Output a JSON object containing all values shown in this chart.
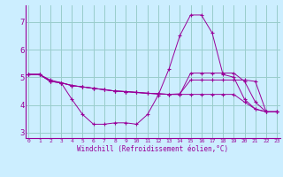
{
  "background_color": "#cceeff",
  "grid_color": "#99cccc",
  "line_color": "#990099",
  "x_hours": [
    0,
    1,
    2,
    3,
    4,
    5,
    6,
    7,
    8,
    9,
    10,
    11,
    12,
    13,
    14,
    15,
    16,
    17,
    18,
    19,
    20,
    21,
    22,
    23
  ],
  "series": [
    [
      5.1,
      5.1,
      4.9,
      4.8,
      4.2,
      3.65,
      3.3,
      3.3,
      3.35,
      3.35,
      3.3,
      3.65,
      4.35,
      5.3,
      6.5,
      7.25,
      7.25,
      6.6,
      5.1,
      5.0,
      4.2,
      3.85,
      3.75,
      3.75
    ],
    [
      5.1,
      5.1,
      4.85,
      4.8,
      4.7,
      4.65,
      4.6,
      4.55,
      4.5,
      4.48,
      4.45,
      4.42,
      4.4,
      4.38,
      4.38,
      5.15,
      5.15,
      5.15,
      5.15,
      5.15,
      4.85,
      4.1,
      3.75,
      3.75
    ],
    [
      5.1,
      5.1,
      4.85,
      4.8,
      4.7,
      4.65,
      4.6,
      4.55,
      4.5,
      4.48,
      4.45,
      4.42,
      4.4,
      4.38,
      4.4,
      4.9,
      4.9,
      4.9,
      4.9,
      4.9,
      4.9,
      4.85,
      3.75,
      3.75
    ],
    [
      5.1,
      5.1,
      4.85,
      4.8,
      4.7,
      4.65,
      4.6,
      4.55,
      4.5,
      4.48,
      4.45,
      4.42,
      4.4,
      4.38,
      4.38,
      4.38,
      4.38,
      4.38,
      4.38,
      4.38,
      4.1,
      3.85,
      3.75,
      3.75
    ]
  ],
  "xlabel": "Windchill (Refroidissement éolien,°C)",
  "yticks": [
    3,
    4,
    5,
    6,
    7
  ],
  "xtick_labels": [
    "0",
    "1",
    "2",
    "3",
    "4",
    "5",
    "6",
    "7",
    "8",
    "9",
    "10",
    "11",
    "12",
    "13",
    "14",
    "15",
    "16",
    "17",
    "18",
    "19",
    "20",
    "21",
    "22",
    "23"
  ],
  "ylim": [
    2.8,
    7.6
  ],
  "xlim": [
    -0.3,
    23.3
  ]
}
